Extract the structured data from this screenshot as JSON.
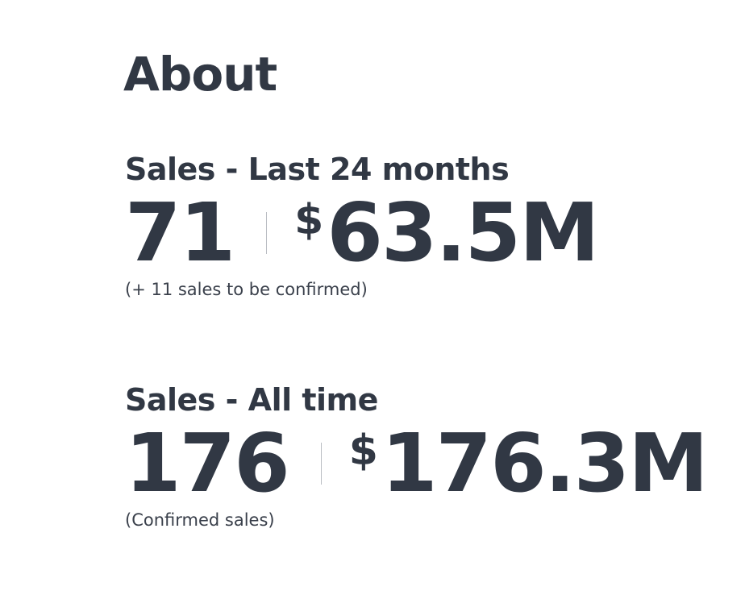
{
  "title": "About",
  "sections": [
    {
      "heading": "Sales - Last 24 months",
      "count": "71",
      "currency": "$",
      "amount": "63.5M",
      "note": "(+ 11 sales to be confirmed)"
    },
    {
      "heading": "Sales - All time",
      "count": "176",
      "currency": "$",
      "amount": "176.3M",
      "note": "(Confirmed sales)"
    }
  ]
}
